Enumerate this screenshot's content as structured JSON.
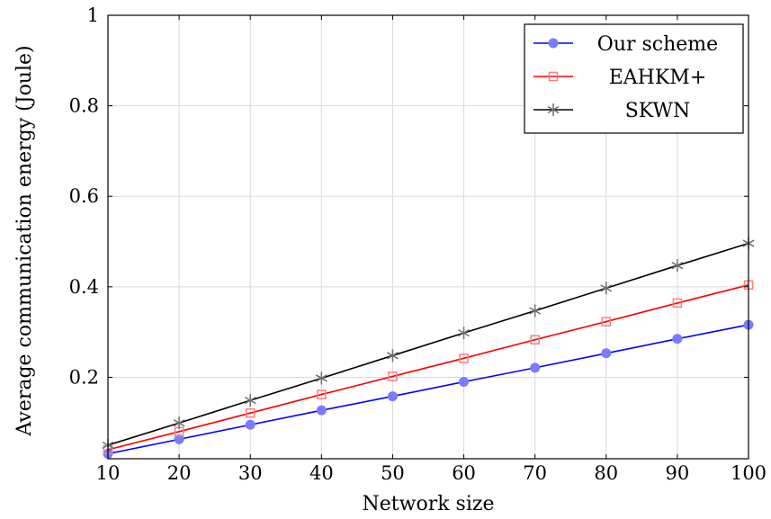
{
  "chart_data": {
    "type": "line",
    "title": "",
    "xlabel": "Network size",
    "ylabel": "Average communication energy (Joule)",
    "x": [
      10,
      20,
      30,
      40,
      50,
      60,
      70,
      80,
      90,
      100
    ],
    "xlim": [
      10,
      100
    ],
    "ylim": [
      0.02,
      1.0
    ],
    "xticks": [
      "10",
      "20",
      "30",
      "40",
      "50",
      "60",
      "70",
      "80",
      "90",
      "100"
    ],
    "yticks": [
      {
        "value": 0.2,
        "label": "0.2"
      },
      {
        "value": 0.4,
        "label": "0.4"
      },
      {
        "value": 0.6,
        "label": "0.6"
      },
      {
        "value": 0.8,
        "label": "0.8"
      },
      {
        "value": 1.0,
        "label": "1"
      }
    ],
    "grid": true,
    "legend_position": "top-right",
    "series": [
      {
        "name": "Our scheme",
        "color": "#0000ff",
        "marker_color": "#7b7bff",
        "marker": "circle",
        "values": [
          0.031,
          0.063,
          0.095,
          0.127,
          0.158,
          0.19,
          0.221,
          0.253,
          0.285,
          0.316
        ]
      },
      {
        "name": "EAHKM+",
        "color": "#ff0000",
        "marker_color": "#ff7b7b",
        "marker": "square",
        "values": [
          0.04,
          0.08,
          0.121,
          0.162,
          0.202,
          0.242,
          0.283,
          0.323,
          0.364,
          0.404
        ]
      },
      {
        "name": "SKWN",
        "color": "#000000",
        "marker_color": "#6e6e6e",
        "marker": "star",
        "values": [
          0.05,
          0.099,
          0.149,
          0.198,
          0.248,
          0.298,
          0.347,
          0.397,
          0.447,
          0.496
        ]
      }
    ]
  }
}
